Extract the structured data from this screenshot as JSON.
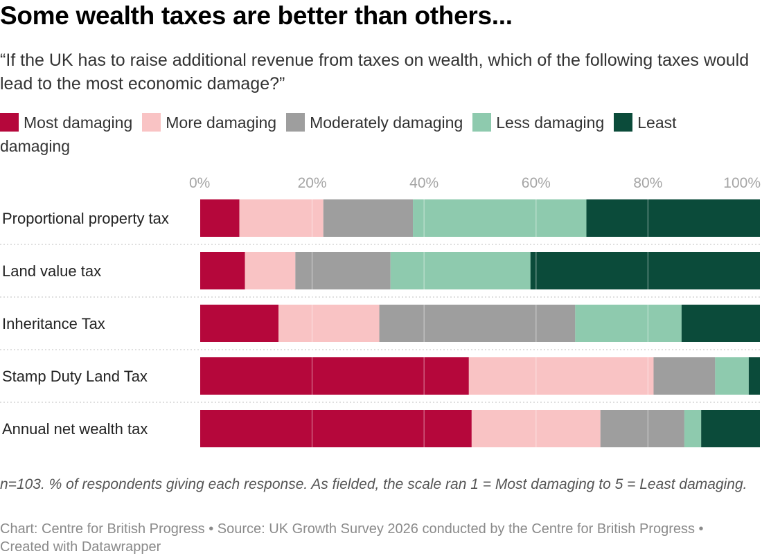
{
  "header": {
    "title": "Some wealth taxes are better than others...",
    "subtitle": "“If the UK has to raise additional revenue from taxes on wealth, which of the following taxes would lead to the most economic damage?”"
  },
  "footer": {
    "note": "n=103. % of respondents giving each response. As fielded, the scale ran 1 = Most damaging to 5 = Least damaging.",
    "source": "Chart: Centre for British Progress • Source: UK Growth Survey 2026 conducted by the Centre for British Progress • Created with Datawrapper"
  },
  "chart_data": {
    "type": "bar",
    "orientation": "horizontal",
    "stacked": true,
    "categories": [
      "Proportional property tax",
      "Land value tax",
      "Inheritance Tax",
      "Stamp Duty Land Tax",
      "Annual net wealth tax"
    ],
    "series": [
      {
        "name": "Most damaging",
        "color": "#b5073b",
        "values": [
          7,
          8,
          14,
          48,
          48.5
        ]
      },
      {
        "name": "More damaging",
        "color": "#f9c3c4",
        "values": [
          15,
          9,
          18,
          33,
          23
        ]
      },
      {
        "name": "Moderately damaging",
        "color": "#9e9e9e",
        "values": [
          16,
          17,
          35,
          11,
          15
        ]
      },
      {
        "name": "Less damaging",
        "color": "#8ecaae",
        "values": [
          31,
          25,
          19,
          6,
          3
        ]
      },
      {
        "name": "Least damaging",
        "color": "#0b4b3a",
        "values": [
          31,
          41,
          14,
          2,
          10.5
        ]
      }
    ],
    "x_ticks": [
      "0%",
      "20%",
      "40%",
      "60%",
      "80%",
      "100%"
    ],
    "xlim": [
      0,
      100
    ],
    "grid": true,
    "legend_position": "top"
  }
}
